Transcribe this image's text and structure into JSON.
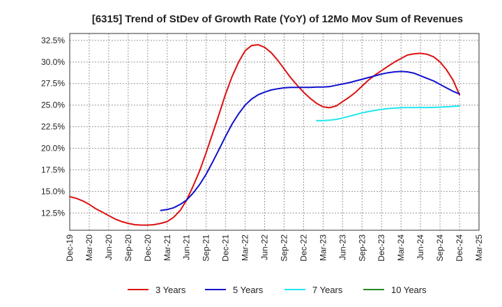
{
  "chart_data": {
    "type": "line",
    "title": "[6315]  Trend of StDev of Growth Rate (YoY) of 12Mo Mov Sum of Revenues",
    "xlabel": "",
    "ylabel": "",
    "x_ticks": [
      "Dec-19",
      "Mar-20",
      "Jun-20",
      "Sep-20",
      "Dec-20",
      "Mar-21",
      "Jun-21",
      "Sep-21",
      "Dec-21",
      "Mar-22",
      "Jun-22",
      "Sep-22",
      "Dec-22",
      "Mar-23",
      "Jun-23",
      "Sep-23",
      "Dec-23",
      "Mar-24",
      "Jun-24",
      "Sep-24",
      "Dec-24",
      "Mar-25"
    ],
    "y_ticks": [
      "12.5%",
      "15.0%",
      "17.5%",
      "20.0%",
      "22.5%",
      "25.0%",
      "27.5%",
      "30.0%",
      "32.5%"
    ],
    "y_tick_values": [
      12.5,
      15.0,
      17.5,
      20.0,
      22.5,
      25.0,
      27.5,
      30.0,
      32.5
    ],
    "ylim": [
      10.5,
      33.3
    ],
    "xlim": [
      0,
      21
    ],
    "grid": true,
    "legend_position": "bottom",
    "series": [
      {
        "name": "3 Years",
        "color": "#dd1111",
        "x": [
          0,
          0.33,
          0.67,
          1,
          1.33,
          1.67,
          2,
          2.33,
          2.67,
          3,
          3.33,
          3.67,
          4,
          4.33,
          4.67,
          5,
          5.33,
          5.67,
          6,
          6.33,
          6.67,
          7,
          7.33,
          7.67,
          8,
          8.33,
          8.67,
          9,
          9.33,
          9.67,
          10,
          10.33,
          10.67,
          11,
          11.33,
          11.67,
          12,
          12.33,
          12.67,
          13,
          13.33,
          13.67,
          14,
          14.33,
          14.67,
          15,
          15.33,
          15.67,
          16,
          16.33,
          16.67,
          17,
          17.33,
          17.67,
          18,
          18.33,
          18.67,
          19,
          19.33,
          19.67,
          20
        ],
        "values": [
          14.4,
          14.2,
          13.9,
          13.5,
          13.0,
          12.6,
          12.2,
          11.8,
          11.5,
          11.3,
          11.15,
          11.1,
          11.1,
          11.15,
          11.3,
          11.5,
          12.0,
          12.8,
          14.0,
          15.6,
          17.4,
          19.5,
          21.7,
          24.0,
          26.3,
          28.3,
          30.0,
          31.3,
          31.9,
          32.0,
          31.7,
          31.1,
          30.2,
          29.2,
          28.2,
          27.3,
          26.5,
          25.8,
          25.2,
          24.8,
          24.7,
          24.9,
          25.4,
          25.9,
          26.5,
          27.2,
          27.9,
          28.5,
          29.0,
          29.5,
          30.0,
          30.4,
          30.8,
          30.95,
          31.0,
          30.9,
          30.6,
          30.0,
          29.1,
          27.9,
          26.2
        ]
      },
      {
        "name": "5 Years",
        "color": "#1111cc",
        "x": [
          4.67,
          5,
          5.33,
          5.67,
          6,
          6.33,
          6.67,
          7,
          7.33,
          7.67,
          8,
          8.33,
          8.67,
          9,
          9.33,
          9.67,
          10,
          10.33,
          10.67,
          11,
          11.33,
          11.67,
          12,
          12.33,
          12.67,
          13,
          13.33,
          13.67,
          14,
          14.33,
          14.67,
          15,
          15.33,
          15.67,
          16,
          16.33,
          16.67,
          17,
          17.33,
          17.67,
          18,
          18.33,
          18.67,
          19,
          19.33,
          19.67,
          20
        ],
        "values": [
          12.8,
          12.9,
          13.1,
          13.5,
          14.0,
          14.8,
          15.8,
          17.0,
          18.4,
          19.9,
          21.4,
          22.8,
          24.0,
          25.0,
          25.7,
          26.2,
          26.5,
          26.75,
          26.9,
          27.0,
          27.05,
          27.05,
          27.05,
          27.05,
          27.1,
          27.1,
          27.15,
          27.3,
          27.45,
          27.6,
          27.8,
          28.0,
          28.2,
          28.4,
          28.6,
          28.75,
          28.85,
          28.9,
          28.85,
          28.7,
          28.4,
          28.1,
          27.8,
          27.4,
          27.0,
          26.6,
          26.3
        ]
      },
      {
        "name": "7 Years",
        "color": "#22e5f0",
        "x": [
          12.67,
          13,
          13.33,
          13.67,
          14,
          14.33,
          14.67,
          15,
          15.33,
          15.67,
          16,
          16.33,
          16.67,
          17,
          17.33,
          17.67,
          18,
          18.33,
          18.67,
          19,
          19.33,
          19.67,
          20
        ],
        "values": [
          23.2,
          23.2,
          23.25,
          23.35,
          23.5,
          23.7,
          23.9,
          24.1,
          24.25,
          24.4,
          24.5,
          24.6,
          24.65,
          24.7,
          24.72,
          24.72,
          24.72,
          24.72,
          24.74,
          24.76,
          24.8,
          24.85,
          24.9
        ]
      },
      {
        "name": "10 Years",
        "color": "#228822",
        "x": [],
        "values": []
      }
    ]
  }
}
